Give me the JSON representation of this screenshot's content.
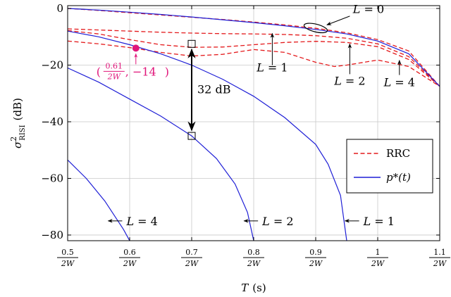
{
  "chart_data": {
    "type": "line",
    "xlabel_var": "T",
    "xlabel_unit": "(s)",
    "ylabel_sym": "σ",
    "ylabel_sup": "2",
    "ylabel_sub": "RISI",
    "ylabel_unit": "(dB)",
    "xlim": [
      0.5,
      1.1
    ],
    "ylim": [
      -82,
      1
    ],
    "grid": true,
    "legend_position": "right",
    "x_ticks": [
      {
        "value": 0.5,
        "num": "0.5",
        "den": "2W"
      },
      {
        "value": 0.6,
        "num": "0.6",
        "den": "2W"
      },
      {
        "value": 0.7,
        "num": "0.7",
        "den": "2W"
      },
      {
        "value": 0.8,
        "num": "0.8",
        "den": "2W"
      },
      {
        "value": 0.9,
        "num": "0.9",
        "den": "2W"
      },
      {
        "value": 1.0,
        "num": "1",
        "den": "2W"
      },
      {
        "value": 1.1,
        "num": "1.1",
        "den": "2W"
      }
    ],
    "y_ticks": [
      0,
      -20,
      -40,
      -60,
      -80
    ],
    "y_tick_labels": [
      "0",
      "−20",
      "−40",
      "−60",
      "−80"
    ],
    "legend": [
      {
        "label": "RRC",
        "style": "dashed",
        "color": "#e41a1c"
      },
      {
        "label": "p*(t)",
        "style": "solid",
        "color": "#1f1fd6"
      }
    ],
    "series": [
      {
        "group": "RRC",
        "L": "0",
        "color": "#e41a1c",
        "dash": true,
        "x": [
          0.5,
          0.55,
          0.6,
          0.65,
          0.7,
          0.75,
          0.8,
          0.85,
          0.9,
          0.95,
          1.0,
          1.05,
          1.1
        ],
        "y": [
          0,
          -0.7,
          -1.5,
          -2.3,
          -3.1,
          -3.9,
          -4.8,
          -5.8,
          -7.0,
          -8.6,
          -11.0,
          -15.0,
          -27.5
        ]
      },
      {
        "group": "RRC",
        "L": "1",
        "color": "#e41a1c",
        "dash": true,
        "x": [
          0.5,
          0.55,
          0.6,
          0.65,
          0.7,
          0.75,
          0.8,
          0.85,
          0.9,
          0.95,
          1.0,
          1.05,
          1.1
        ],
        "y": [
          -7.2,
          -7.6,
          -8.0,
          -8.4,
          -8.7,
          -8.9,
          -9.0,
          -9.2,
          -9.6,
          -10.5,
          -12.5,
          -17.0,
          -27.5
        ]
      },
      {
        "group": "RRC",
        "L": "2",
        "color": "#e41a1c",
        "dash": true,
        "x": [
          0.5,
          0.55,
          0.6,
          0.65,
          0.7,
          0.75,
          0.8,
          0.85,
          0.9,
          0.95,
          1.0,
          1.05,
          1.1
        ],
        "y": [
          -7.8,
          -9.0,
          -11.0,
          -12.8,
          -13.7,
          -13.6,
          -12.8,
          -12.0,
          -11.6,
          -12.0,
          -13.5,
          -18.0,
          -27.5
        ]
      },
      {
        "group": "RRC",
        "L": "4",
        "color": "#e41a1c",
        "dash": true,
        "x": [
          0.5,
          0.55,
          0.6,
          0.65,
          0.7,
          0.75,
          0.8,
          0.85,
          0.9,
          0.93,
          0.95,
          1.0,
          1.05,
          1.1
        ],
        "y": [
          -11.5,
          -12.5,
          -13.8,
          -15.5,
          -16.8,
          -16.2,
          -14.5,
          -15.5,
          -19.0,
          -20.5,
          -20.0,
          -18.2,
          -20.5,
          -27.5
        ]
      },
      {
        "group": "p*(t)",
        "L": "0",
        "color": "#1f1fd6",
        "dash": false,
        "x": [
          0.5,
          0.55,
          0.6,
          0.65,
          0.7,
          0.75,
          0.8,
          0.85,
          0.9,
          0.95,
          1.0,
          1.05,
          1.1
        ],
        "y": [
          0,
          -0.6,
          -1.3,
          -2.1,
          -3.0,
          -4.0,
          -5.0,
          -6.1,
          -7.4,
          -9.0,
          -11.5,
          -16.0,
          -27.5
        ]
      },
      {
        "group": "p*(t)",
        "L": "1",
        "color": "#1f1fd6",
        "dash": false,
        "x": [
          0.5,
          0.55,
          0.6,
          0.65,
          0.7,
          0.75,
          0.8,
          0.85,
          0.9,
          0.92,
          0.94,
          0.95
        ],
        "y": [
          -8.0,
          -10.0,
          -12.8,
          -16.0,
          -20.0,
          -25.0,
          -31.0,
          -38.5,
          -48.0,
          -55.0,
          -66.0,
          -82.0
        ]
      },
      {
        "group": "p*(t)",
        "L": "2",
        "color": "#1f1fd6",
        "dash": false,
        "x": [
          0.5,
          0.55,
          0.6,
          0.65,
          0.7,
          0.74,
          0.77,
          0.79,
          0.8
        ],
        "y": [
          -21.0,
          -26.0,
          -32.0,
          -38.0,
          -45.0,
          -53.0,
          -62.0,
          -72.0,
          -82.0
        ]
      },
      {
        "group": "p*(t)",
        "L": "4",
        "color": "#1f1fd6",
        "dash": false,
        "x": [
          0.5,
          0.53,
          0.56,
          0.59,
          0.6
        ],
        "y": [
          -53.5,
          -60.0,
          -68.0,
          -78.0,
          -82.0
        ]
      }
    ],
    "annotations": {
      "L0": "L = 0",
      "L1": "L = 1",
      "L2": "L = 2",
      "L4_rrc": "L = 4",
      "L4_p": "L = 4",
      "L2_p": "L = 2",
      "L1_p": "L = 1",
      "gap_label": "32 dB",
      "gap_x": 0.7,
      "gap_top": -12.5,
      "gap_bottom": -45,
      "point_x": 0.61,
      "point_y": -14,
      "point_label_num": "0.61",
      "point_label_den": "2W",
      "point_label_y": ", −14",
      "point_color": "#e0157a"
    }
  }
}
